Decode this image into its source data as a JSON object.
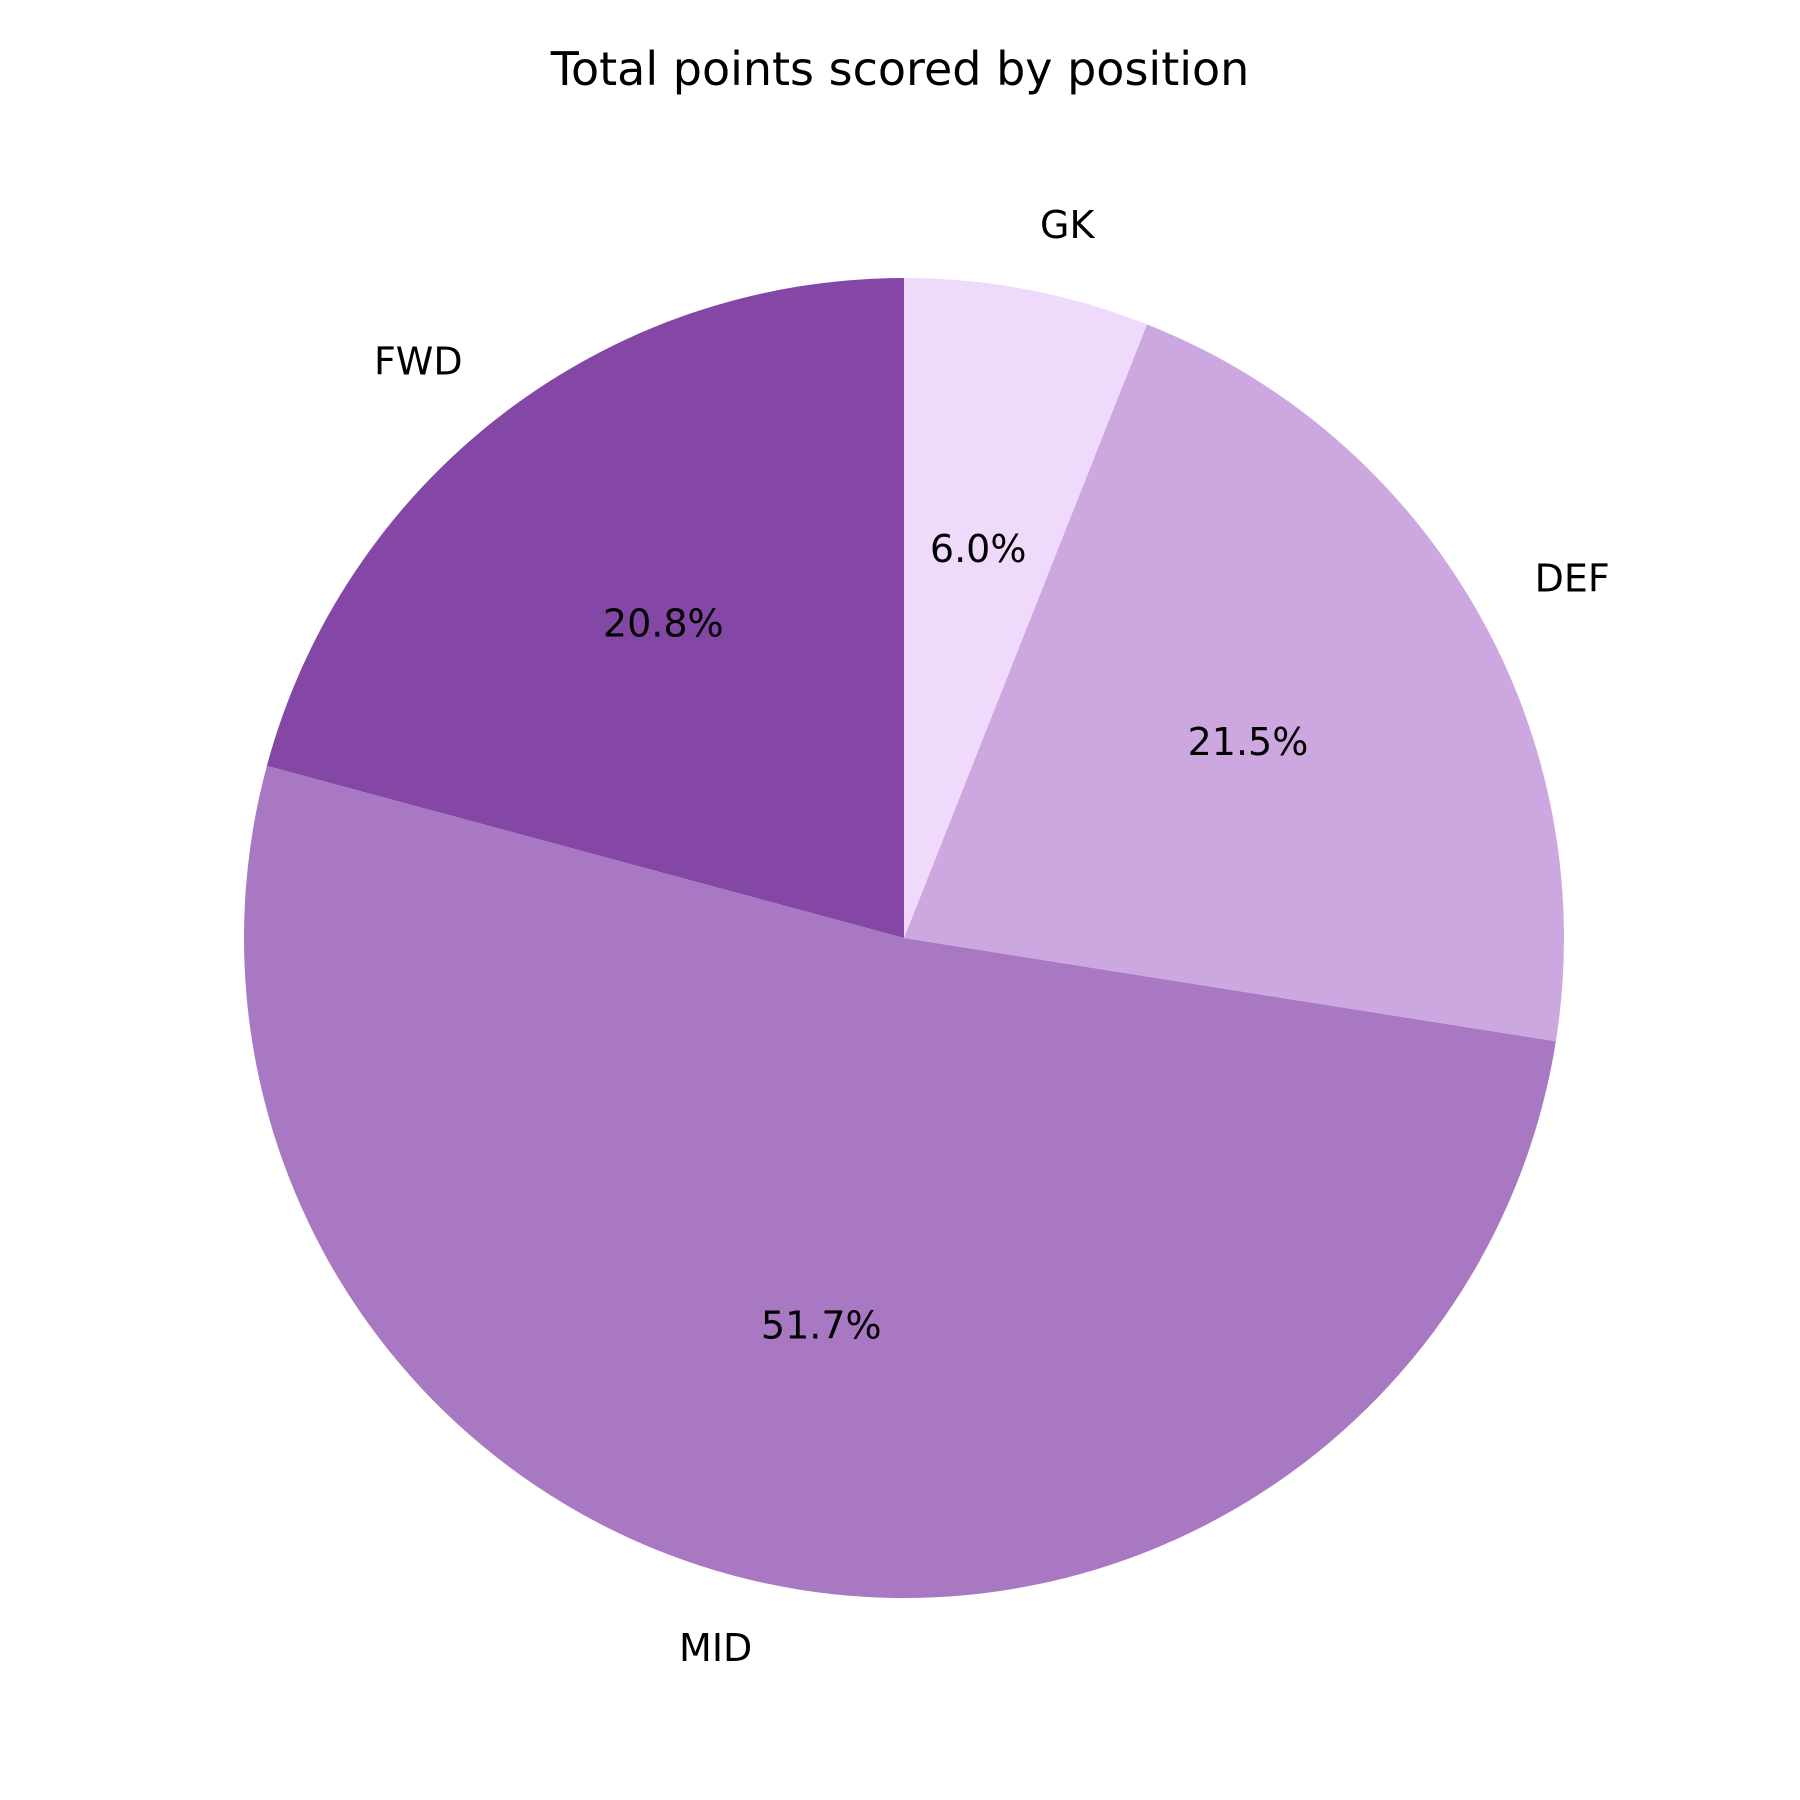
{
  "chart_data": {
    "type": "pie",
    "title": "Total points scored by position",
    "start_angle_deg": 90,
    "direction": "counterclockwise",
    "slices": [
      {
        "label": "FWD",
        "value": 20.8,
        "pct_label": "20.8%",
        "color": "#8547a6"
      },
      {
        "label": "MID",
        "value": 51.7,
        "pct_label": "51.7%",
        "color": "#a978c3"
      },
      {
        "label": "DEF",
        "value": 21.5,
        "pct_label": "21.5%",
        "color": "#cda7e0"
      },
      {
        "label": "GK",
        "value": 6.0,
        "pct_label": "6.0%",
        "color": "#f0dafb"
      }
    ]
  }
}
